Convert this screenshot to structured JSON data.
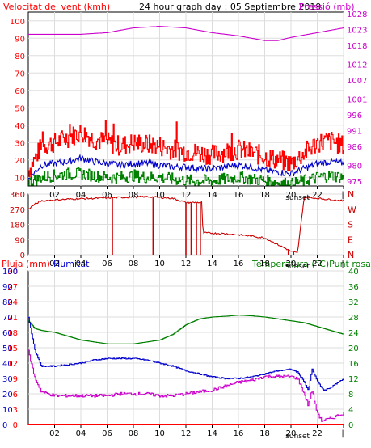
{
  "header": {
    "left": "Velocitat del vent (kmh)",
    "center": "24 hour graph day : 05 Septiembre 2019",
    "right": "Pressió (mb)"
  },
  "colors": {
    "frame": "#000000",
    "grid": "#cccccc",
    "wind_speed": "#ff0000",
    "wind_avg": "#0000cc",
    "wind_low": "#008000",
    "pressure": "#cc00cc",
    "humidity": "#0000cc",
    "temperature": "#008000",
    "dewpoint": "#cc00cc",
    "rain": "#ff0000",
    "direction": "#cc0000"
  },
  "chart_data": [
    {
      "type": "line",
      "title": "Velocitat del vent (kmh)",
      "right_title": "Pressió (mb)",
      "x_ticks": [
        "02",
        "04",
        "06",
        "08",
        "10",
        "12",
        "14",
        "16",
        "18",
        "20",
        "22",
        "|"
      ],
      "x_range": [
        0,
        24
      ],
      "sunset_label": "sunset",
      "sunset_x": 20.5,
      "y_left": {
        "range": [
          5,
          105
        ],
        "ticks": [
          10,
          20,
          30,
          40,
          50,
          60,
          70,
          80,
          90,
          100
        ]
      },
      "y_right": {
        "range": [
          973.5,
          1028.5
        ],
        "ticks": [
          975,
          980,
          986,
          991,
          996,
          1001,
          1007,
          1012,
          1018,
          1023,
          1028
        ]
      },
      "series": [
        {
          "key": "wind_gust",
          "color": "#ff0000",
          "x": [
            0,
            1,
            2,
            3,
            4,
            5,
            6,
            7,
            8,
            9,
            10,
            11,
            12,
            13,
            14,
            15,
            16,
            17,
            18,
            19,
            20,
            21,
            22,
            23,
            24
          ],
          "y": [
            14,
            28,
            30,
            33,
            36,
            32,
            30,
            28,
            30,
            29,
            28,
            26,
            25,
            24,
            23,
            25,
            26,
            24,
            22,
            20,
            18,
            24,
            30,
            31,
            28
          ]
        },
        {
          "key": "wind_avg",
          "color": "#0000cc",
          "x": [
            0,
            1,
            2,
            3,
            4,
            5,
            6,
            7,
            8,
            9,
            10,
            11,
            12,
            13,
            14,
            15,
            16,
            17,
            18,
            19,
            20,
            21,
            22,
            23,
            24
          ],
          "y": [
            9,
            17,
            18,
            19,
            21,
            19,
            18,
            17,
            18,
            18,
            17,
            16,
            16,
            15,
            15,
            16,
            17,
            16,
            14,
            13,
            12,
            15,
            18,
            19,
            18
          ]
        },
        {
          "key": "wind_low",
          "color": "#008000",
          "x": [
            0,
            1,
            2,
            3,
            4,
            5,
            6,
            7,
            8,
            9,
            10,
            11,
            12,
            13,
            14,
            15,
            16,
            17,
            18,
            19,
            20,
            21,
            22,
            23,
            24
          ],
          "y": [
            7,
            10,
            11,
            12,
            12,
            11,
            10,
            10,
            11,
            10,
            10,
            9,
            8,
            8,
            8,
            9,
            10,
            9,
            8,
            7,
            6,
            8,
            10,
            11,
            10
          ]
        },
        {
          "key": "pressure",
          "color": "#cc00cc",
          "x": [
            0,
            2,
            4,
            6,
            8,
            10,
            12,
            14,
            16,
            18,
            19,
            20,
            22,
            24
          ],
          "y": [
            1021.5,
            1021.5,
            1021.5,
            1022,
            1023.5,
            1024,
            1023.5,
            1022,
            1021,
            1019.5,
            1019.5,
            1020.5,
            1022,
            1023.5
          ]
        }
      ]
    },
    {
      "type": "line",
      "x_ticks": [
        "02",
        "04",
        "06",
        "08",
        "10",
        "12",
        "14",
        "16",
        "18",
        "20",
        "22",
        "|"
      ],
      "x_range": [
        0,
        24
      ],
      "sunset_label": "sunset",
      "sunset_x": 20.5,
      "y_left": {
        "range": [
          0,
          360
        ],
        "ticks": [
          0,
          90,
          180,
          270,
          360
        ]
      },
      "y_right_labels": [
        "N",
        "W",
        "S",
        "E",
        "N"
      ],
      "series": [
        {
          "key": "direction",
          "color": "#cc0000",
          "x": [
            0,
            0.5,
            1,
            3,
            5,
            7,
            9,
            11,
            12,
            13.2,
            13.3,
            15,
            16.5,
            17,
            18,
            19,
            19.5,
            20,
            20.5,
            21,
            22,
            24
          ],
          "y": [
            270,
            300,
            320,
            330,
            335,
            340,
            345,
            335,
            310,
            310,
            130,
            125,
            115,
            110,
            100,
            60,
            40,
            20,
            10,
            340,
            335,
            320
          ]
        }
      ]
    },
    {
      "type": "line",
      "left_titles": [
        "Pluja (mm)",
        "Humitat"
      ],
      "right_title": "Temperatura (°C)Punt rosada",
      "x_ticks": [
        "02",
        "04",
        "06",
        "08",
        "10",
        "12",
        "14",
        "16",
        "18",
        "20",
        "22",
        "|"
      ],
      "x_range": [
        0,
        24
      ],
      "sunset_label": "sunset",
      "sunset_x": 20.5,
      "y_rain": {
        "range": [
          0,
          30
        ],
        "ticks": [
          0,
          3,
          6,
          9,
          12,
          15,
          18,
          21,
          24,
          27,
          30
        ]
      },
      "y_humidity": {
        "range": [
          0,
          100
        ],
        "ticks": [
          0,
          10,
          20,
          30,
          40,
          50,
          60,
          70,
          80,
          90,
          100
        ]
      },
      "y_temp": {
        "range": [
          0,
          40
        ],
        "ticks": [
          0,
          4,
          8,
          12,
          16,
          20,
          24,
          28,
          32,
          36,
          40
        ]
      },
      "series": [
        {
          "key": "temperature",
          "axis": "temp",
          "color": "#008000",
          "x": [
            0,
            0.5,
            1,
            2,
            3,
            4,
            5,
            6,
            7,
            8,
            9,
            10,
            11,
            12,
            13,
            14,
            15,
            16,
            17,
            18,
            19,
            20,
            21,
            22,
            23,
            24
          ],
          "y": [
            27,
            25,
            24.5,
            24,
            23,
            22,
            21.5,
            21,
            21,
            21,
            21.5,
            22,
            23.5,
            26,
            27.5,
            28,
            28.2,
            28.5,
            28.3,
            28,
            27.5,
            27,
            26.5,
            25.5,
            24.5,
            23.5
          ]
        },
        {
          "key": "humidity",
          "axis": "humidity",
          "color": "#0000cc",
          "x": [
            0,
            0.5,
            1,
            2,
            3,
            4,
            5,
            6,
            7,
            8,
            9,
            10,
            11,
            12,
            13,
            14,
            15,
            16,
            17,
            18,
            19,
            20,
            20.5,
            21,
            21.3,
            21.6,
            22,
            22.5,
            23,
            24
          ],
          "y": [
            70,
            48,
            38,
            38,
            39,
            40,
            42,
            43,
            43,
            43,
            42,
            40,
            38,
            35,
            33,
            31,
            30,
            30,
            31,
            33,
            35,
            36,
            34,
            28,
            22,
            36,
            28,
            22,
            24,
            30
          ]
        },
        {
          "key": "dewpoint",
          "axis": "temp",
          "color": "#cc00cc",
          "x": [
            0,
            0.5,
            1,
            2,
            3,
            4,
            5,
            6,
            7,
            8,
            9,
            10,
            11,
            12,
            13,
            14,
            15,
            16,
            17,
            18,
            19,
            20,
            20.5,
            21,
            21.3,
            21.6,
            21.9,
            22.3,
            23,
            24
          ],
          "y": [
            19,
            12,
            8.5,
            7.5,
            7.5,
            7.5,
            7.5,
            7.5,
            8,
            8,
            8,
            7.5,
            7.5,
            8,
            8.5,
            9,
            10,
            11,
            11.5,
            12.5,
            12.5,
            12.5,
            12,
            8,
            5,
            9,
            4,
            1,
            1.5,
            3
          ]
        },
        {
          "key": "rain",
          "axis": "rain",
          "color": "#ff0000",
          "x": [
            0,
            24
          ],
          "y": [
            0,
            0
          ]
        }
      ]
    }
  ]
}
